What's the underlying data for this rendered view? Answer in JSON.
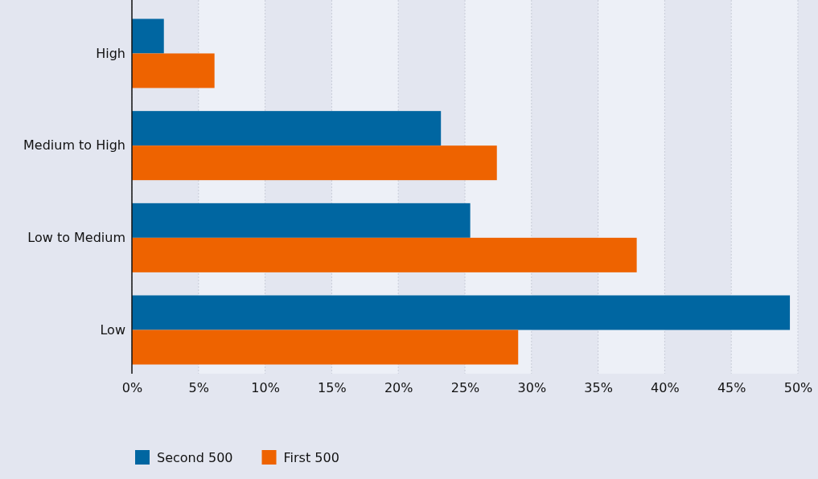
{
  "chart_data": {
    "type": "bar",
    "orientation": "horizontal",
    "categories": [
      "High",
      "Medium to High",
      "Low to Medium",
      "Low"
    ],
    "series": [
      {
        "name": "Second 500",
        "color": "#0066a1",
        "values": [
          2.4,
          23.2,
          25.4,
          49.4
        ]
      },
      {
        "name": "First 500",
        "color": "#ee6300",
        "values": [
          6.2,
          27.4,
          37.9,
          29.0
        ]
      }
    ],
    "xlim": [
      0,
      50
    ],
    "xticks": [
      {
        "value": 0,
        "label": "0%"
      },
      {
        "value": 5,
        "label": "5%"
      },
      {
        "value": 10,
        "label": "10%"
      },
      {
        "value": 15,
        "label": "15%"
      },
      {
        "value": 20,
        "label": "20%"
      },
      {
        "value": 25,
        "label": "25%"
      },
      {
        "value": 30,
        "label": "30%"
      },
      {
        "value": 35,
        "label": "35%"
      },
      {
        "value": 40,
        "label": "40%"
      },
      {
        "value": 45,
        "label": "45%"
      },
      {
        "value": 50,
        "label": "50%"
      }
    ],
    "grid": "x",
    "legend": "bottom left"
  }
}
